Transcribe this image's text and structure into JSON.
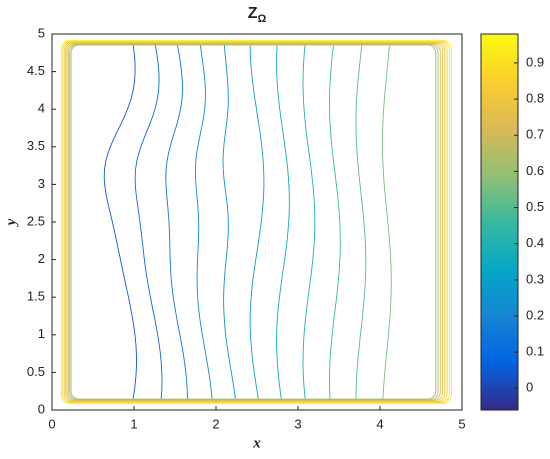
{
  "chart_data": {
    "type": "contour",
    "title": "Z",
    "title_subscript": "Ω",
    "xlabel": "x",
    "ylabel": "y",
    "xlim": [
      0,
      5
    ],
    "xticks": [
      0,
      1,
      2,
      3,
      4,
      5
    ],
    "ylim": [
      0,
      5
    ],
    "yticks": [
      0,
      0.5,
      1,
      1.5,
      2,
      2.5,
      3,
      3.5,
      4,
      4.5,
      5
    ],
    "clim": [
      -0.06,
      0.98
    ],
    "cticks": [
      0,
      0.1,
      0.2,
      0.3,
      0.4,
      0.5,
      0.6,
      0.7,
      0.8,
      0.9
    ],
    "levels": [
      0.05,
      0.1,
      0.15,
      0.2,
      0.25,
      0.3,
      0.35,
      0.4,
      0.45,
      0.5,
      0.55,
      0.6,
      0.65,
      0.7,
      0.75,
      0.8,
      0.85,
      0.9,
      0.95
    ],
    "colormap": "parula"
  }
}
